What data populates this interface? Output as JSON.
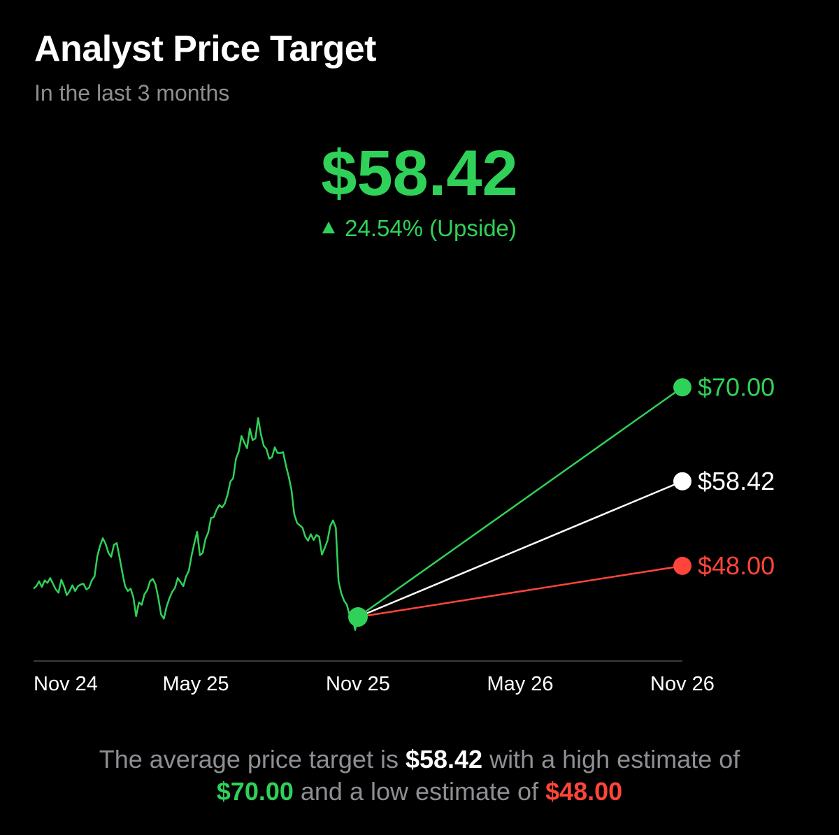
{
  "header": {
    "title": "Analyst Price Target",
    "subtitle": "In the last 3 months"
  },
  "target": {
    "price": "$58.42",
    "change": "24.54% (Upside)",
    "change_icon": "triangle-up-icon"
  },
  "summary": {
    "part1": "The average price target is ",
    "avg": "$58.42",
    "part2": " with a high estimate of ",
    "high": "$70.00",
    "part3": " and a low estimate of ",
    "low": "$48.00"
  },
  "colors": {
    "green": "#30d158",
    "red": "#ff453a",
    "white": "#ffffff",
    "gray": "#8e8e93",
    "axis": "#3a3a3c"
  },
  "chart_data": {
    "type": "line",
    "x_tick_labels": [
      "Nov 24",
      "May 25",
      "Nov 25",
      "May 26",
      "Nov 26"
    ],
    "y_range": [
      38,
      85
    ],
    "price_series": {
      "x_start": "2024-11",
      "x_end": "2025-11",
      "values": [
        45.2,
        45.5,
        46.1,
        45.4,
        46.2,
        45.9,
        46.5,
        45.8,
        45.1,
        44.7,
        46.3,
        45.5,
        44.4,
        44.9,
        45.6,
        44.9,
        45.5,
        45.7,
        45.8,
        45.1,
        45.3,
        46.2,
        46.7,
        49.2,
        50.5,
        51.4,
        50.7,
        49.6,
        49.1,
        50.6,
        50.8,
        49.1,
        47.2,
        45.5,
        44.9,
        45.2,
        44.1,
        41.8,
        43.5,
        43.2,
        44.5,
        45.0,
        46.1,
        46.4,
        45.7,
        44.0,
        42.0,
        41.5,
        43.0,
        44.0,
        44.8,
        45.3,
        46.5,
        46.0,
        45.5,
        46.7,
        47.4,
        49.3,
        50.8,
        52.2,
        49.3,
        49.6,
        51.3,
        52.1,
        53.9,
        54.0,
        54.9,
        55.5,
        55.2,
        55.7,
        56.8,
        58.4,
        58.8,
        61.2,
        62.1,
        64.0,
        63.2,
        62.5,
        64.9,
        63.5,
        63.7,
        66.2,
        64.2,
        62.8,
        62.4,
        61.2,
        61.4,
        62.6,
        61.9,
        61.9,
        62.0,
        60.4,
        59.0,
        57.4,
        54.4,
        53.3,
        53.0,
        52.7,
        51.6,
        51.1,
        51.9,
        51.2,
        51.8,
        51.6,
        49.4,
        50.2,
        51.1,
        52.9,
        53.6,
        52.7,
        46.1,
        44.6,
        43.7,
        43.2,
        41.9,
        41.6,
        40.1,
        41.7
      ]
    },
    "targets": [
      {
        "name": "High",
        "value": 70.0,
        "label": "$70.00",
        "color": "#30d158"
      },
      {
        "name": "Average",
        "value": 58.42,
        "label": "$58.42",
        "color": "#ffffff"
      },
      {
        "name": "Low",
        "value": 48.0,
        "label": "$48.00",
        "color": "#ff453a"
      }
    ],
    "current_price": 41.7,
    "grid": false
  }
}
